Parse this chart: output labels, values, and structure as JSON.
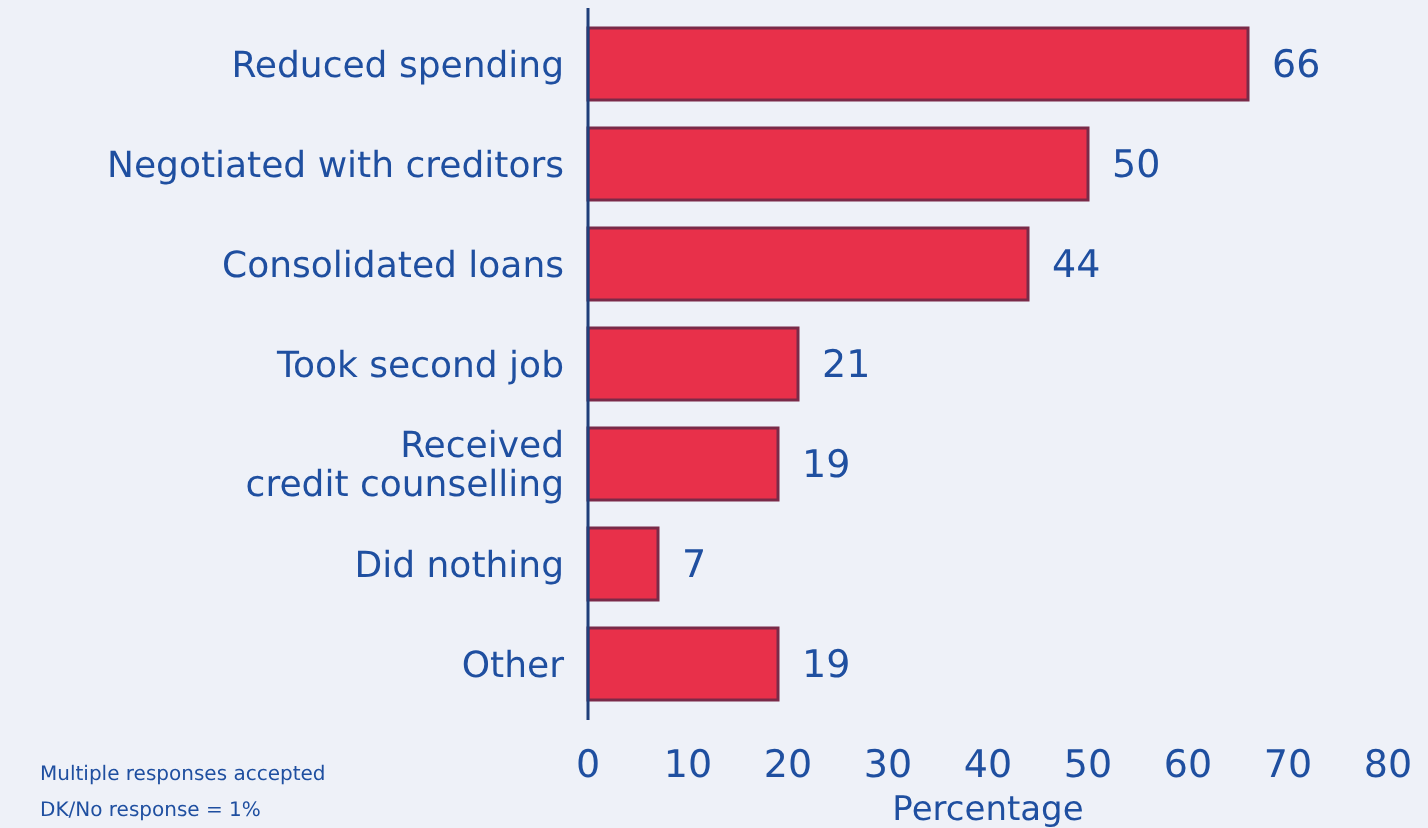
{
  "chart_data": {
    "type": "bar",
    "orientation": "horizontal",
    "xlabel": "Percentage",
    "categories": [
      "Reduced spending",
      "Negotiated with creditors",
      "Consolidated loans",
      "Took second job",
      "Received\ncredit counselling",
      "Did nothing",
      "Other"
    ],
    "values": [
      66,
      50,
      44,
      21,
      19,
      7,
      19
    ],
    "color": "#e8304a",
    "data_labels": true,
    "xlim": [
      0,
      80
    ],
    "xticks": [
      0,
      10,
      20,
      30,
      40,
      50,
      60,
      70,
      80
    ],
    "annotations": [
      "Multiple responses accepted",
      "DK/No response = 1%"
    ]
  }
}
